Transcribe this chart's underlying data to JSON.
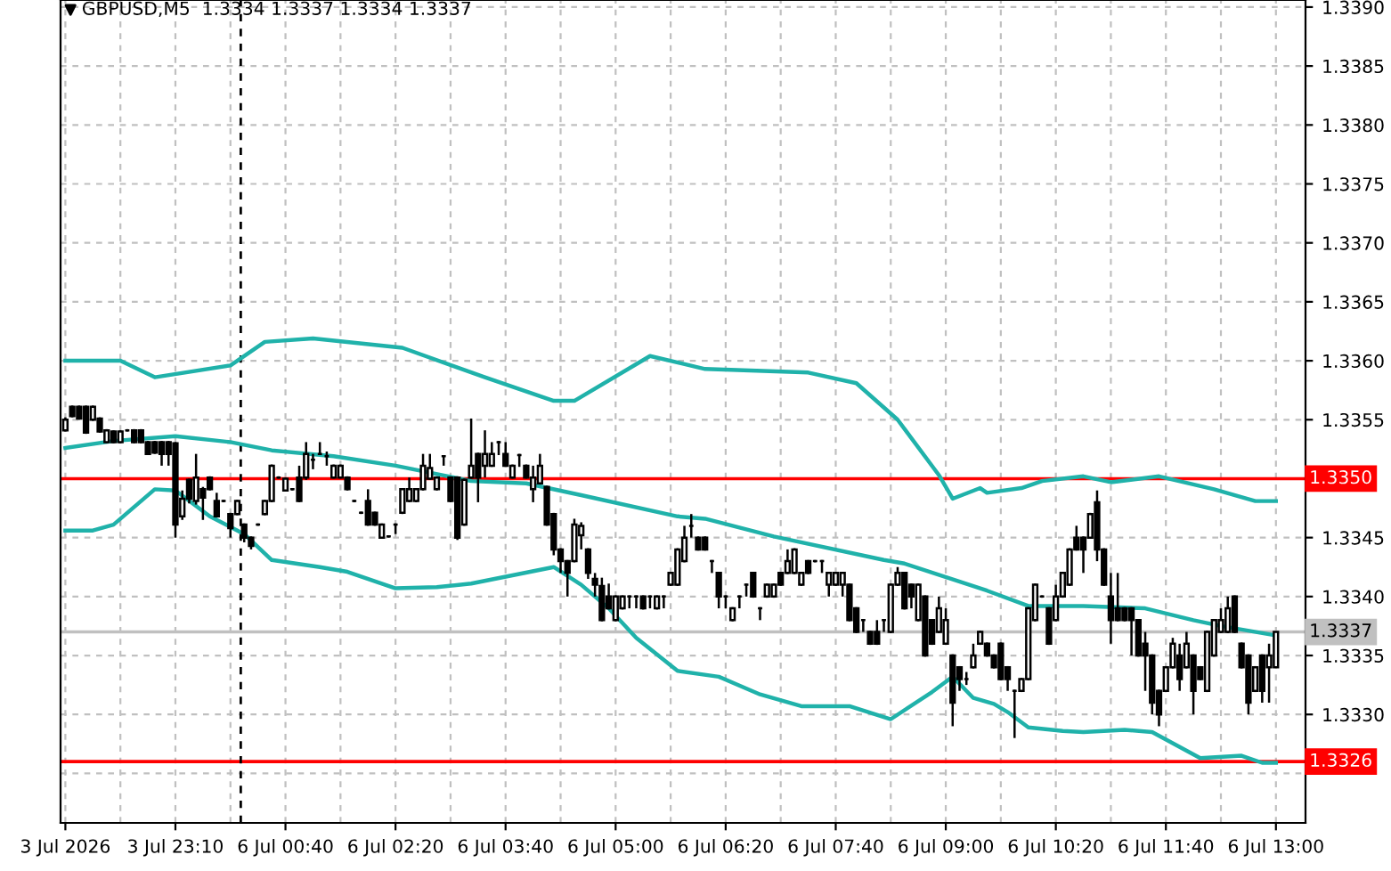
{
  "chart_data": {
    "type": "candlestick",
    "title": "GBPUSD,M5  1.3334 1.3337 1.3334 1.3337",
    "color": "#000000",
    "categories": [
      "3 Jul 2026",
      null,
      null,
      null,
      null,
      null,
      null,
      null,
      null,
      null,
      null,
      null,
      null,
      null,
      null,
      null,
      "3 Jul 23:10",
      null,
      null,
      null,
      null,
      null,
      null,
      null,
      null,
      null,
      null,
      null,
      null,
      null,
      null,
      null,
      "6 Jul 00:40",
      null,
      null,
      null,
      null,
      null,
      null,
      null,
      null,
      null,
      null,
      null,
      null,
      null,
      null,
      null,
      "6 Jul 02:20",
      null,
      null,
      null,
      null,
      null,
      null,
      null,
      null,
      null,
      null,
      null,
      null,
      null,
      null,
      null,
      "6 Jul 03:40",
      null,
      null,
      null,
      null,
      null,
      null,
      null,
      null,
      null,
      null,
      null,
      null,
      null,
      null,
      null,
      "6 Jul 05:00",
      null,
      null,
      null,
      null,
      null,
      null,
      null,
      null,
      null,
      null,
      null,
      null,
      null,
      null,
      null,
      "6 Jul 06:20",
      null,
      null,
      null,
      null,
      null,
      null,
      null,
      null,
      null,
      null,
      null,
      null,
      null,
      null,
      null,
      "6 Jul 07:40",
      null,
      null,
      null,
      null,
      null,
      null,
      null,
      null,
      null,
      null,
      null,
      null,
      null,
      null,
      null,
      "6 Jul 09:00",
      null,
      null,
      null,
      null,
      null,
      null,
      null,
      null,
      null,
      null,
      null,
      null,
      null,
      null,
      null,
      "6 Jul 10:20",
      null,
      null,
      null,
      null,
      null,
      null,
      null,
      null,
      null,
      null,
      null,
      null,
      null,
      null,
      null,
      "6 Jul 11:40",
      null,
      null,
      null,
      null,
      null,
      null,
      null,
      null,
      null,
      null,
      null,
      null,
      null,
      null,
      null,
      "6 Jul 13:00"
    ],
    "ohlc": [
      [
        1.33541,
        1.33552,
        1.3354,
        1.3355
      ],
      [
        1.33561,
        1.33562,
        1.33552,
        1.33553
      ],
      [
        1.33561,
        1.33562,
        1.3355,
        1.33551
      ],
      [
        1.33561,
        1.33562,
        1.33538,
        1.33539
      ],
      [
        1.3355,
        1.33562,
        1.33549,
        1.33561
      ],
      [
        1.33551,
        1.33552,
        1.33539,
        1.3354
      ],
      [
        1.33531,
        1.33542,
        1.3353,
        1.33541
      ],
      [
        1.3354,
        1.33541,
        1.3353,
        1.33531
      ],
      [
        1.33531,
        1.33541,
        1.3353,
        1.3354
      ],
      [
        1.33541,
        1.33542,
        1.3354,
        1.33541
      ],
      [
        1.33541,
        1.33542,
        1.3353,
        1.33531
      ],
      [
        1.33541,
        1.33542,
        1.3353,
        1.33531
      ],
      [
        1.33531,
        1.33532,
        1.3352,
        1.33521
      ],
      [
        1.33531,
        1.33532,
        1.33521,
        1.33522
      ],
      [
        1.33531,
        1.33532,
        1.33511,
        1.33521
      ],
      [
        1.33531,
        1.33532,
        1.33511,
        1.33521
      ],
      [
        1.3353,
        1.33531,
        1.3345,
        1.33461
      ],
      [
        1.33468,
        1.3349,
        1.33465,
        1.33483
      ],
      [
        1.33499,
        1.335,
        1.33479,
        1.33483
      ],
      [
        1.33481,
        1.33521,
        1.33478,
        1.33501
      ],
      [
        1.33491,
        1.33493,
        1.33465,
        1.33484
      ],
      [
        1.33501,
        1.33502,
        1.3349,
        1.33491
      ],
      [
        1.33481,
        1.33488,
        1.33467,
        1.33468
      ],
      [
        1.33481,
        1.33482,
        1.3348,
        1.33481
      ],
      [
        1.3347,
        1.33471,
        1.3345,
        1.33458
      ],
      [
        1.3347,
        1.33482,
        1.33469,
        1.33481
      ],
      [
        1.33461,
        1.33462,
        1.33446,
        1.3345
      ],
      [
        1.3345,
        1.33451,
        1.3344,
        1.33443
      ],
      [
        1.33461,
        1.33462,
        1.3346,
        1.33461
      ],
      [
        1.3347,
        1.33482,
        1.33469,
        1.33481
      ],
      [
        1.33481,
        1.33512,
        1.3348,
        1.33511
      ],
      [
        1.33501,
        1.33502,
        1.335,
        1.33501
      ],
      [
        1.3349,
        1.33501,
        1.33489,
        1.335
      ],
      [
        1.33491,
        1.33492,
        1.3349,
        1.33491
      ],
      [
        1.33501,
        1.33511,
        1.3348,
        1.33481
      ],
      [
        1.33501,
        1.33531,
        1.33499,
        1.33521
      ],
      [
        1.33516,
        1.33521,
        1.33508,
        1.33516
      ],
      [
        1.33521,
        1.33531,
        1.3352,
        1.33521
      ],
      [
        1.33519,
        1.33523,
        1.33511,
        1.33519
      ],
      [
        1.33501,
        1.33512,
        1.335,
        1.33511
      ],
      [
        1.33501,
        1.33512,
        1.335,
        1.33511
      ],
      [
        1.33501,
        1.33502,
        1.3349,
        1.33491
      ],
      [
        1.33481,
        1.33482,
        1.3348,
        1.33481
      ],
      [
        1.33471,
        1.33472,
        1.3347,
        1.33471
      ],
      [
        1.33481,
        1.33491,
        1.3346,
        1.33461
      ],
      [
        1.33471,
        1.33472,
        1.3346,
        1.33461
      ],
      [
        1.3345,
        1.33462,
        1.33449,
        1.33461
      ],
      [
        1.33451,
        1.33452,
        1.3345,
        1.33451
      ],
      [
        1.33461,
        1.33462,
        1.33453,
        1.33461
      ],
      [
        1.33471,
        1.33492,
        1.3347,
        1.33491
      ],
      [
        1.33481,
        1.33501,
        1.3348,
        1.33491
      ],
      [
        1.33481,
        1.33492,
        1.3348,
        1.33491
      ],
      [
        1.33491,
        1.33521,
        1.3349,
        1.33511
      ],
      [
        1.335,
        1.33521,
        1.33499,
        1.33509
      ],
      [
        1.33491,
        1.33502,
        1.3349,
        1.33501
      ],
      [
        1.33519,
        1.3352,
        1.33511,
        1.33519
      ],
      [
        1.33501,
        1.33502,
        1.3348,
        1.33481
      ],
      [
        1.33501,
        1.33502,
        1.33448,
        1.3345
      ],
      [
        1.33461,
        1.335,
        1.3346,
        1.33499
      ],
      [
        1.33501,
        1.33551,
        1.335,
        1.33511
      ],
      [
        1.33521,
        1.33522,
        1.3348,
        1.33501
      ],
      [
        1.33511,
        1.33541,
        1.33501,
        1.33521
      ],
      [
        1.33511,
        1.33531,
        1.3351,
        1.33521
      ],
      [
        1.33531,
        1.33532,
        1.3352,
        1.33531
      ],
      [
        1.33521,
        1.33531,
        1.3351,
        1.33511
      ],
      [
        1.33501,
        1.33512,
        1.335,
        1.33511
      ],
      [
        1.3352,
        1.33521,
        1.3351,
        1.3352
      ],
      [
        1.33511,
        1.33512,
        1.335,
        1.33501
      ],
      [
        1.33491,
        1.33511,
        1.3348,
        1.33501
      ],
      [
        1.33496,
        1.33521,
        1.33495,
        1.33511
      ],
      [
        1.33493,
        1.33494,
        1.3346,
        1.33461
      ],
      [
        1.3347,
        1.33471,
        1.33435,
        1.3344
      ],
      [
        1.3344,
        1.33441,
        1.3342,
        1.3343
      ],
      [
        1.3343,
        1.33431,
        1.334,
        1.3342
      ],
      [
        1.3343,
        1.33466,
        1.33429,
        1.33461
      ],
      [
        1.33452,
        1.33463,
        1.3344,
        1.3346
      ],
      [
        1.3344,
        1.33441,
        1.33415,
        1.3342
      ],
      [
        1.33415,
        1.3342,
        1.334,
        1.3341
      ],
      [
        1.33409,
        1.33416,
        1.33379,
        1.3338
      ],
      [
        1.334,
        1.33411,
        1.33389,
        1.3339
      ],
      [
        1.3338,
        1.33401,
        1.33379,
        1.334
      ],
      [
        1.3339,
        1.33401,
        1.33389,
        1.334
      ],
      [
        1.334,
        1.33401,
        1.3339,
        1.334
      ],
      [
        1.334,
        1.33401,
        1.3339,
        1.334
      ],
      [
        1.334,
        1.33401,
        1.33389,
        1.3339
      ],
      [
        1.334,
        1.33401,
        1.3339,
        1.334
      ],
      [
        1.3339,
        1.33401,
        1.33389,
        1.334
      ],
      [
        1.334,
        1.33401,
        1.3339,
        1.334
      ],
      [
        1.3341,
        1.33421,
        1.33409,
        1.3342
      ],
      [
        1.3341,
        1.33441,
        1.33409,
        1.3344
      ],
      [
        1.3343,
        1.3346,
        1.33429,
        1.3345
      ],
      [
        1.3346,
        1.3347,
        1.3345,
        1.3346
      ],
      [
        1.3345,
        1.33451,
        1.33439,
        1.3344
      ],
      [
        1.3345,
        1.33451,
        1.33439,
        1.3344
      ],
      [
        1.3343,
        1.33431,
        1.3342,
        1.3343
      ],
      [
        1.3342,
        1.33421,
        1.3339,
        1.334
      ],
      [
        1.334,
        1.33401,
        1.3339,
        1.334
      ],
      [
        1.3338,
        1.33391,
        1.33379,
        1.3339
      ],
      [
        1.334,
        1.33401,
        1.3339,
        1.334
      ],
      [
        1.3341,
        1.33411,
        1.334,
        1.3341
      ],
      [
        1.3342,
        1.33421,
        1.33399,
        1.334
      ],
      [
        1.3339,
        1.33391,
        1.3338,
        1.3339
      ],
      [
        1.334,
        1.33411,
        1.33399,
        1.3341
      ],
      [
        1.334,
        1.33411,
        1.33399,
        1.3341
      ],
      [
        1.3342,
        1.33421,
        1.33409,
        1.3341
      ],
      [
        1.3342,
        1.3344,
        1.33419,
        1.3343
      ],
      [
        1.3342,
        1.33441,
        1.33419,
        1.3344
      ],
      [
        1.3341,
        1.33421,
        1.33409,
        1.3342
      ],
      [
        1.3343,
        1.33431,
        1.33419,
        1.3342
      ],
      [
        1.3343,
        1.33431,
        1.33429,
        1.3343
      ],
      [
        1.3343,
        1.33431,
        1.3342,
        1.3343
      ],
      [
        1.3341,
        1.33421,
        1.334,
        1.3342
      ],
      [
        1.3341,
        1.33421,
        1.33409,
        1.3342
      ],
      [
        1.3341,
        1.33421,
        1.334,
        1.3342
      ],
      [
        1.3341,
        1.33411,
        1.33379,
        1.3338
      ],
      [
        1.3339,
        1.33391,
        1.33369,
        1.3337
      ],
      [
        1.3338,
        1.33381,
        1.3337,
        1.3338
      ],
      [
        1.3337,
        1.33371,
        1.33359,
        1.3336
      ],
      [
        1.3337,
        1.3338,
        1.33359,
        1.3336
      ],
      [
        1.3338,
        1.33381,
        1.3337,
        1.3338
      ],
      [
        1.3337,
        1.33411,
        1.33369,
        1.3341
      ],
      [
        1.3341,
        1.33425,
        1.33409,
        1.3342
      ],
      [
        1.3342,
        1.33421,
        1.33389,
        1.3339
      ],
      [
        1.3341,
        1.33411,
        1.3339,
        1.334
      ],
      [
        1.3338,
        1.33411,
        1.33379,
        1.3341
      ],
      [
        1.334,
        1.33401,
        1.33349,
        1.3335
      ],
      [
        1.3338,
        1.33381,
        1.33359,
        1.3336
      ],
      [
        1.3337,
        1.334,
        1.33369,
        1.3339
      ],
      [
        1.3336,
        1.3339,
        1.33359,
        1.3338
      ],
      [
        1.3335,
        1.33351,
        1.3329,
        1.3331
      ],
      [
        1.3334,
        1.33341,
        1.3332,
        1.3333
      ],
      [
        1.3333,
        1.33336,
        1.33325,
        1.3333
      ],
      [
        1.3334,
        1.3336,
        1.33339,
        1.3335
      ],
      [
        1.3336,
        1.33371,
        1.33359,
        1.3337
      ],
      [
        1.3336,
        1.33361,
        1.33349,
        1.3335
      ],
      [
        1.3335,
        1.33351,
        1.33339,
        1.3334
      ],
      [
        1.3336,
        1.33361,
        1.33329,
        1.3333
      ],
      [
        1.3334,
        1.33341,
        1.3332,
        1.3333
      ],
      [
        1.3332,
        1.33321,
        1.3328,
        1.3332
      ],
      [
        1.3332,
        1.33331,
        1.33319,
        1.3333
      ],
      [
        1.3333,
        1.33391,
        1.33329,
        1.3339
      ],
      [
        1.3338,
        1.33411,
        1.33379,
        1.3341
      ],
      [
        1.334,
        1.33401,
        1.33399,
        1.334
      ],
      [
        1.3339,
        1.33391,
        1.33359,
        1.3336
      ],
      [
        1.3338,
        1.3341,
        1.33379,
        1.334
      ],
      [
        1.334,
        1.33421,
        1.33399,
        1.3342
      ],
      [
        1.3341,
        1.33441,
        1.33409,
        1.3344
      ],
      [
        1.3345,
        1.3346,
        1.33439,
        1.3344
      ],
      [
        1.3345,
        1.33451,
        1.3342,
        1.3344
      ],
      [
        1.3345,
        1.33471,
        1.33449,
        1.3347
      ],
      [
        1.3348,
        1.3349,
        1.3343,
        1.3344
      ],
      [
        1.3344,
        1.33441,
        1.33409,
        1.3341
      ],
      [
        1.334,
        1.3342,
        1.3336,
        1.3338
      ],
      [
        1.3339,
        1.3342,
        1.33379,
        1.3338
      ],
      [
        1.3339,
        1.33391,
        1.33379,
        1.3338
      ],
      [
        1.3339,
        1.33391,
        1.3335,
        1.3338
      ],
      [
        1.3338,
        1.33381,
        1.33349,
        1.3335
      ],
      [
        1.3336,
        1.3337,
        1.3332,
        1.3335
      ],
      [
        1.3335,
        1.33351,
        1.333,
        1.3331
      ],
      [
        1.3332,
        1.33321,
        1.3329,
        1.333
      ],
      [
        1.3332,
        1.33341,
        1.33319,
        1.3334
      ],
      [
        1.3334,
        1.33365,
        1.33339,
        1.3336
      ],
      [
        1.3335,
        1.3336,
        1.3332,
        1.3333
      ],
      [
        1.3334,
        1.3337,
        1.33339,
        1.3336
      ],
      [
        1.3335,
        1.33351,
        1.333,
        1.3332
      ],
      [
        1.3334,
        1.33341,
        1.33329,
        1.3333
      ],
      [
        1.3332,
        1.33371,
        1.33319,
        1.3337
      ],
      [
        1.3335,
        1.33381,
        1.33349,
        1.3338
      ],
      [
        1.3337,
        1.3339,
        1.33369,
        1.3338
      ],
      [
        1.3337,
        1.334,
        1.33369,
        1.3339
      ],
      [
        1.334,
        1.33401,
        1.33369,
        1.3337
      ],
      [
        1.3336,
        1.33361,
        1.33339,
        1.3334
      ],
      [
        1.3335,
        1.33351,
        1.333,
        1.3331
      ],
      [
        1.3332,
        1.33341,
        1.33319,
        1.3334
      ],
      [
        1.3335,
        1.33351,
        1.3331,
        1.3332
      ],
      [
        1.3334,
        1.3336,
        1.3331,
        1.3335
      ],
      [
        1.3334,
        1.3337,
        1.3334,
        1.3337
      ]
    ],
    "series": [
      {
        "type": "line",
        "color": "#20b2aa",
        "values": [
          1.336,
          null,
          null,
          null,
          null,
          null,
          null,
          null,
          1.336,
          null,
          null,
          null,
          null,
          1.33586,
          null,
          null,
          null,
          null,
          null,
          null,
          null,
          null,
          null,
          null,
          1.33596,
          null,
          null,
          null,
          null,
          1.33616,
          null,
          null,
          null,
          null,
          null,
          null,
          1.33619,
          null,
          null,
          null,
          null,
          null,
          null,
          null,
          null,
          null,
          null,
          null,
          null,
          1.33611,
          null,
          null,
          null,
          null,
          null,
          null,
          null,
          null,
          null,
          null,
          null,
          1.33586,
          null,
          null,
          null,
          null,
          null,
          null,
          null,
          null,
          null,
          1.33566,
          null,
          null,
          1.33566,
          null,
          null,
          null,
          null,
          null,
          null,
          null,
          null,
          null,
          null,
          1.33604,
          null,
          null,
          null,
          null,
          null,
          null,
          null,
          1.33593,
          null,
          null,
          null,
          null,
          null,
          null,
          null,
          null,
          null,
          null,
          null,
          null,
          null,
          null,
          1.3359,
          null,
          null,
          null,
          null,
          null,
          null,
          1.33581,
          null,
          null,
          null,
          null,
          null,
          1.3355,
          null,
          null,
          null,
          null,
          null,
          1.33503,
          null,
          1.33483,
          null,
          null,
          null,
          1.33492,
          1.33488,
          null,
          null,
          null,
          null,
          1.33492,
          null,
          null,
          1.33498,
          null,
          null,
          null,
          null,
          null,
          1.33502,
          null,
          null,
          null,
          1.33497,
          null,
          null,
          null,
          null,
          null,
          null,
          1.33502,
          null,
          null,
          null,
          null,
          null,
          null,
          null,
          1.33491,
          null,
          null,
          null,
          null,
          null,
          1.33481,
          null,
          null,
          1.33481
        ]
      },
      {
        "type": "line",
        "color": "#20b2aa",
        "values": [
          1.33526,
          null,
          null,
          null,
          null,
          null,
          null,
          1.33532,
          null,
          null,
          null,
          null,
          null,
          null,
          null,
          null,
          1.33536,
          null,
          null,
          null,
          null,
          null,
          null,
          null,
          1.33531,
          null,
          null,
          null,
          null,
          null,
          1.33524,
          null,
          null,
          null,
          null,
          null,
          null,
          null,
          null,
          1.33519,
          null,
          null,
          null,
          null,
          null,
          null,
          null,
          null,
          1.33511,
          null,
          null,
          null,
          null,
          null,
          null,
          null,
          null,
          null,
          null,
          1.33498,
          null,
          null,
          null,
          null,
          null,
          null,
          null,
          1.33496,
          null,
          null,
          null,
          null,
          null,
          null,
          null,
          1.33486,
          null,
          null,
          null,
          null,
          null,
          null,
          null,
          null,
          null,
          null,
          null,
          null,
          null,
          1.33468,
          null,
          null,
          null,
          1.33466,
          null,
          null,
          null,
          null,
          null,
          null,
          null,
          null,
          null,
          1.33451,
          null,
          null,
          null,
          null,
          null,
          null,
          null,
          null,
          null,
          null,
          null,
          null,
          null,
          null,
          null,
          1.33431,
          null,
          null,
          1.33428,
          null,
          null,
          null,
          null,
          null,
          null,
          null,
          null,
          null,
          null,
          null,
          1.33405,
          null,
          null,
          null,
          null,
          null,
          1.33392,
          null,
          null,
          null,
          null,
          null,
          null,
          null,
          1.33392,
          null,
          null,
          null,
          null,
          null,
          null,
          null,
          null,
          1.3339,
          null,
          null,
          null,
          null,
          null,
          null,
          1.3338,
          null,
          null,
          null,
          1.33375,
          null,
          null,
          null,
          null,
          null,
          null,
          null,
          1.33367
        ]
      },
      {
        "type": "line",
        "color": "#20b2aa",
        "values": [
          1.33456,
          null,
          null,
          null,
          1.33456,
          null,
          null,
          1.33461,
          null,
          null,
          null,
          null,
          null,
          1.33491,
          null,
          null,
          1.3349,
          null,
          null,
          null,
          null,
          1.33468,
          null,
          null,
          null,
          null,
          1.33453,
          null,
          null,
          null,
          1.33431,
          null,
          null,
          null,
          null,
          null,
          null,
          1.33425,
          null,
          null,
          null,
          1.33421,
          null,
          null,
          null,
          null,
          null,
          null,
          1.33407,
          null,
          null,
          null,
          null,
          null,
          1.33408,
          null,
          null,
          null,
          null,
          1.33411,
          null,
          null,
          null,
          null,
          null,
          null,
          null,
          null,
          null,
          null,
          null,
          1.33425,
          null,
          null,
          null,
          1.3341,
          null,
          null,
          null,
          1.3339,
          null,
          null,
          null,
          1.33365,
          null,
          null,
          null,
          null,
          null,
          1.33337,
          null,
          null,
          null,
          null,
          null,
          1.33332,
          null,
          null,
          null,
          null,
          null,
          1.33317,
          null,
          null,
          null,
          null,
          null,
          1.33307,
          null,
          null,
          null,
          null,
          null,
          null,
          1.33307,
          null,
          null,
          null,
          null,
          null,
          1.33296,
          null,
          null,
          null,
          null,
          null,
          1.33319,
          null,
          null,
          1.33332,
          null,
          null,
          1.33314,
          null,
          null,
          1.33309,
          null,
          1.33302,
          null,
          null,
          1.33289,
          null,
          null,
          null,
          null,
          1.33286,
          null,
          null,
          1.33285,
          null,
          null,
          null,
          null,
          null,
          1.33287,
          null,
          null,
          null,
          1.33285,
          null,
          null,
          null,
          null,
          null,
          null,
          1.33263,
          null,
          null,
          null,
          null,
          null,
          1.33265,
          null,
          null,
          1.33259,
          null,
          1.33259
        ]
      }
    ],
    "ylim": [
      1.33208,
      1.33906
    ],
    "yticks": [
      {
        "value": 1.3325,
        "label": null
      },
      {
        "value": 1.333,
        "label": "1.3330"
      },
      1.3335,
      {
        "value": 1.334,
        "label": "1.3340"
      },
      1.3345,
      {
        "value": 1.335,
        "label": null
      },
      1.3355,
      {
        "value": 1.336,
        "label": "1.3360"
      },
      1.3365,
      {
        "value": 1.337,
        "label": "1.3370"
      },
      1.3375,
      {
        "value": 1.338,
        "label": "1.3380"
      },
      1.3385,
      {
        "value": 1.339,
        "label": "1.3390"
      }
    ],
    "grid": true,
    "ref_lines": [
      {
        "axis": "y",
        "value": 1.335,
        "label": "1.3350",
        "color": "#ff0000"
      },
      {
        "axis": "y",
        "value": 1.3326,
        "label": "1.3326",
        "color": "#ff0000"
      },
      {
        "axis": "y",
        "value": 1.3337,
        "label": "1.3337",
        "color": "#c0c0c0"
      }
    ]
  }
}
